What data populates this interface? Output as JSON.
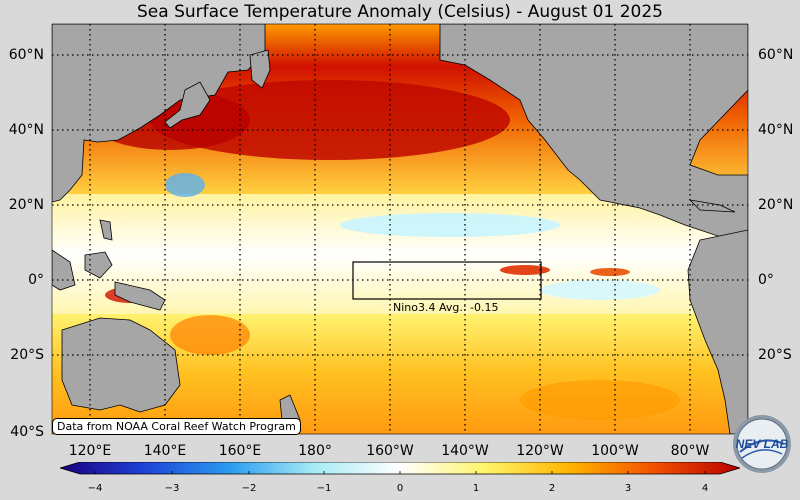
{
  "title": "Sea Surface Temperature Anomaly (Celsius) - August 01 2025",
  "map": {
    "lat_labels": [
      "60°N",
      "40°N",
      "20°N",
      "0°",
      "20°S",
      "40°S"
    ],
    "lon_labels": [
      "120°E",
      "140°E",
      "160°E",
      "180°",
      "160°W",
      "140°W",
      "120°W",
      "100°W",
      "80°W"
    ],
    "colors": {
      "land": "#a6a6a6",
      "background": "#d9d9d9",
      "gridline": "#000000"
    }
  },
  "nino_region": {
    "label": "Nino3.4 Avg.: -0.15"
  },
  "source": "Data from NOAA Coral Reef Watch Program",
  "colorbar": {
    "ticks": [
      "−4",
      "−3",
      "−2",
      "−1",
      "0",
      "1",
      "2",
      "3",
      "4"
    ],
    "colors": [
      "#1a0080",
      "#1e44d8",
      "#2b9cf0",
      "#a8ecf5",
      "#ffffff",
      "#fff56a",
      "#ffb400",
      "#f25000",
      "#b80000"
    ]
  },
  "logo": {
    "text": "NEV LAB"
  }
}
